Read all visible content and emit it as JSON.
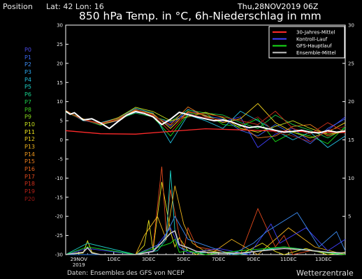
{
  "header": {
    "position_label": "Position",
    "latlon": "Lat: 42  Lon: 16",
    "date": "Thu,28NOV2019 06Z",
    "title": "850 hPa Temp. in °C, 6h-Niederschlag in mm"
  },
  "footer": {
    "source": "Daten: Ensembles des GFS von NCEP",
    "brand": "Wetterzentrale"
  },
  "members": [
    {
      "label": "P0",
      "color": "#4a4ae8"
    },
    {
      "label": "P1",
      "color": "#3a68f0"
    },
    {
      "label": "P2",
      "color": "#3c8cf2"
    },
    {
      "label": "P3",
      "color": "#2ca8f0"
    },
    {
      "label": "P4",
      "color": "#22c0e0"
    },
    {
      "label": "P5",
      "color": "#1ccfc4"
    },
    {
      "label": "P6",
      "color": "#18cf8c"
    },
    {
      "label": "P7",
      "color": "#1ccf4c"
    },
    {
      "label": "P8",
      "color": "#40d020"
    },
    {
      "label": "P9",
      "color": "#88d81c"
    },
    {
      "label": "P10",
      "color": "#c8e21c"
    },
    {
      "label": "P11",
      "color": "#f0e81c"
    },
    {
      "label": "P12",
      "color": "#f0d01c"
    },
    {
      "label": "P13",
      "color": "#f0b41c"
    },
    {
      "label": "P14",
      "color": "#f0981c"
    },
    {
      "label": "P15",
      "color": "#ec7c1c"
    },
    {
      "label": "P16",
      "color": "#e8641c"
    },
    {
      "label": "P17",
      "color": "#e0481c"
    },
    {
      "label": "P18",
      "color": "#d0301c"
    },
    {
      "label": "P19",
      "color": "#b82018"
    },
    {
      "label": "P20",
      "color": "#9c1814"
    }
  ],
  "chart_data": {
    "type": "line",
    "x_unit": "hours from 2019-11-28 06Z",
    "xlim": [
      0,
      384
    ],
    "ylim_left": [
      -30,
      30
    ],
    "ylim_right": [
      0,
      30
    ],
    "left_ticks": [
      "30",
      "25",
      "20",
      "15",
      "10",
      "5",
      "0",
      "-5",
      "-10",
      "-15",
      "-20",
      "-25",
      "-30"
    ],
    "right_ticks": [
      "30",
      "25",
      "20",
      "15",
      "10",
      "5"
    ],
    "x_ticks": [
      {
        "label": "29NOV",
        "sub": "2019",
        "h": 18
      },
      {
        "label": "1DEC",
        "sub": "",
        "h": 66
      },
      {
        "label": "3DEC",
        "sub": "",
        "h": 114
      },
      {
        "label": "5DEC",
        "sub": "",
        "h": 162
      },
      {
        "label": "7DEC",
        "sub": "",
        "h": 210
      },
      {
        "label": "9DEC",
        "sub": "",
        "h": 258
      },
      {
        "label": "11DEC",
        "sub": "",
        "h": 306
      },
      {
        "label": "13DEC",
        "sub": "",
        "h": 354
      }
    ],
    "legend": [
      {
        "name": "30-Jahres-Mittel",
        "color": "#ff2a2a"
      },
      {
        "name": "Kontroll-Lauf",
        "color": "#4040ff"
      },
      {
        "name": "GFS-Hauptlauf",
        "color": "#18e018"
      },
      {
        "name": "Ensemble-Mittel",
        "color": "#c8c8c8"
      }
    ],
    "legend_position": "top-right",
    "climate_mean": {
      "x": [
        0,
        48,
        96,
        144,
        192,
        240,
        288,
        336,
        384
      ],
      "y": [
        2.4,
        1.6,
        1.5,
        2.2,
        2.9,
        2.6,
        2.3,
        2.1,
        1.9
      ]
    },
    "ensemble_mean": {
      "x": [
        0,
        6,
        12,
        24,
        36,
        48,
        60,
        72,
        84,
        96,
        108,
        120,
        132,
        144,
        156,
        168,
        180,
        192,
        204,
        216,
        228,
        240,
        252,
        264,
        276,
        288,
        300,
        312,
        324,
        336,
        348,
        360,
        372,
        384
      ],
      "y": [
        7.5,
        6.7,
        7.1,
        5.2,
        5.5,
        4.4,
        3.0,
        4.8,
        6.5,
        7.4,
        6.9,
        6.0,
        4.0,
        5.4,
        7.2,
        6.6,
        6.0,
        5.5,
        5.0,
        5.2,
        4.7,
        3.8,
        3.2,
        3.5,
        3.0,
        2.5,
        2.0,
        2.2,
        2.5,
        2.0,
        1.8,
        2.4,
        2.0,
        2.3
      ]
    },
    "temperature_series": [
      {
        "name": "Kontroll-Lauf",
        "color": "#4040ff",
        "x": [
          0,
          24,
          48,
          72,
          96,
          120,
          144,
          168,
          192,
          216,
          240,
          264,
          288,
          312,
          336,
          360,
          384
        ],
        "y": [
          7.4,
          5.1,
          4.0,
          5.0,
          7.6,
          6.2,
          4.5,
          7.0,
          5.5,
          4.8,
          6.0,
          -2.0,
          1.5,
          3.0,
          -0.5,
          2.5,
          6.0
        ]
      },
      {
        "name": "GFS-Hauptlauf",
        "color": "#18e018",
        "x": [
          0,
          24,
          48,
          72,
          96,
          120,
          144,
          168,
          192,
          216,
          240,
          264,
          288,
          312,
          336,
          360,
          384
        ],
        "y": [
          7.6,
          5.3,
          4.3,
          5.6,
          7.8,
          5.9,
          1.0,
          6.8,
          7.0,
          4.0,
          3.5,
          5.5,
          -0.5,
          2.0,
          1.0,
          -1.0,
          3.5
        ]
      },
      {
        "name": "P1",
        "color": "#3a68f0",
        "x": [
          0,
          24,
          48,
          72,
          96,
          120,
          144,
          168,
          192,
          216,
          240,
          264,
          288,
          312,
          336,
          360,
          384
        ],
        "y": [
          7.3,
          5.4,
          4.1,
          5.3,
          7.2,
          6.5,
          3.5,
          8.0,
          6.2,
          5.5,
          2.5,
          1.0,
          4.0,
          1.5,
          -1.0,
          3.0,
          5.5
        ]
      },
      {
        "name": "P4",
        "color": "#22c0e0",
        "x": [
          0,
          24,
          48,
          72,
          96,
          120,
          144,
          168,
          192,
          216,
          240,
          264,
          288,
          312,
          336,
          360,
          384
        ],
        "y": [
          7.6,
          5.0,
          4.5,
          5.7,
          8.2,
          7.0,
          -0.8,
          6.5,
          5.0,
          3.0,
          7.5,
          5.0,
          2.5,
          0.0,
          2.0,
          -2.0,
          1.0
        ]
      },
      {
        "name": "P7",
        "color": "#1ccf4c",
        "x": [
          0,
          24,
          48,
          72,
          96,
          120,
          144,
          168,
          192,
          216,
          240,
          264,
          288,
          312,
          336,
          360,
          384
        ],
        "y": [
          7.2,
          5.3,
          3.8,
          5.4,
          7.0,
          6.0,
          4.8,
          7.8,
          7.0,
          6.5,
          4.5,
          3.0,
          6.5,
          4.0,
          2.5,
          0.5,
          3.0
        ]
      },
      {
        "name": "P10",
        "color": "#c8e21c",
        "x": [
          0,
          24,
          48,
          72,
          96,
          120,
          144,
          168,
          192,
          216,
          240,
          264,
          288,
          312,
          336,
          360,
          384
        ],
        "y": [
          7.5,
          5.2,
          4.2,
          5.8,
          8.5,
          7.4,
          5.0,
          6.0,
          7.2,
          5.8,
          3.0,
          2.0,
          3.5,
          5.0,
          3.0,
          1.5,
          2.0
        ]
      },
      {
        "name": "P12",
        "color": "#f0d01c",
        "x": [
          0,
          24,
          48,
          72,
          96,
          120,
          144,
          168,
          192,
          216,
          240,
          264,
          288,
          312,
          336,
          360,
          384
        ],
        "y": [
          7.4,
          5.5,
          4.0,
          5.1,
          7.9,
          6.8,
          3.0,
          7.4,
          6.4,
          4.5,
          5.5,
          9.5,
          4.5,
          2.0,
          0.5,
          2.0,
          4.5
        ]
      },
      {
        "name": "P15",
        "color": "#ec7c1c",
        "x": [
          0,
          24,
          48,
          72,
          96,
          120,
          144,
          168,
          192,
          216,
          240,
          264,
          288,
          312,
          336,
          360,
          384
        ],
        "y": [
          7.7,
          5.1,
          4.4,
          5.5,
          7.5,
          6.3,
          4.0,
          8.6,
          6.0,
          5.0,
          4.0,
          0.5,
          1.0,
          3.5,
          4.0,
          1.0,
          2.5
        ]
      },
      {
        "name": "P18",
        "color": "#d0301c",
        "x": [
          0,
          24,
          48,
          72,
          96,
          120,
          144,
          168,
          192,
          216,
          240,
          264,
          288,
          312,
          336,
          360,
          384
        ],
        "y": [
          7.3,
          5.4,
          4.3,
          5.2,
          7.7,
          6.6,
          2.0,
          7.2,
          6.8,
          6.0,
          5.0,
          4.0,
          7.5,
          3.0,
          1.5,
          4.5,
          2.0
        ]
      },
      {
        "name": "P20",
        "color": "#9c1814",
        "x": [
          0,
          24,
          48,
          72,
          96,
          120,
          144,
          168,
          192,
          216,
          240,
          264,
          288,
          312,
          336,
          360,
          384
        ],
        "y": [
          7.5,
          5.2,
          4.1,
          5.6,
          8.0,
          6.4,
          3.8,
          6.8,
          5.8,
          5.2,
          3.8,
          6.0,
          2.0,
          1.0,
          -0.5,
          2.5,
          3.5
        ]
      }
    ],
    "precipitation_series": [
      {
        "name": "P11",
        "color": "#f0e81c",
        "x": [
          0,
          24,
          30,
          36,
          48,
          96,
          108,
          114,
          120,
          132,
          144,
          150,
          156,
          168,
          180,
          192,
          216,
          240,
          270,
          288,
          300,
          330,
          360,
          384
        ],
        "y": [
          0,
          0.2,
          1.8,
          0.3,
          0,
          0,
          1.2,
          4.5,
          0.6,
          9.5,
          3.0,
          1.0,
          2.2,
          0.5,
          0,
          0.6,
          0.2,
          0,
          1.5,
          0.4,
          0,
          0.8,
          0,
          0.3
        ]
      },
      {
        "name": "P17",
        "color": "#e0481c",
        "x": [
          0,
          36,
          96,
          120,
          132,
          138,
          144,
          156,
          162,
          168,
          180,
          210,
          240,
          264,
          288,
          300,
          312,
          336,
          384
        ],
        "y": [
          0,
          0,
          0,
          1.0,
          11.5,
          3.0,
          8.5,
          2.5,
          0.5,
          3.5,
          1.0,
          0.5,
          0,
          6.0,
          1.0,
          2.5,
          0,
          0.5,
          0
        ]
      },
      {
        "name": "P5",
        "color": "#1ccfc4",
        "x": [
          0,
          30,
          96,
          126,
          138,
          144,
          150,
          156,
          168,
          180,
          204,
          240,
          264,
          300,
          384
        ],
        "y": [
          0,
          1.5,
          0,
          0.5,
          2.0,
          11.0,
          3.0,
          1.0,
          0.5,
          0.2,
          0.3,
          0,
          0.5,
          1.0,
          0
        ]
      },
      {
        "name": "P13",
        "color": "#f0b41c",
        "x": [
          0,
          96,
          108,
          126,
          138,
          150,
          162,
          174,
          198,
          228,
          264,
          306,
          342,
          384
        ],
        "y": [
          0,
          0,
          2.5,
          5.0,
          2.0,
          9.0,
          4.0,
          1.5,
          0,
          2.0,
          0,
          3.5,
          1.0,
          0
        ]
      },
      {
        "name": "Kontroll-Lauf",
        "color": "#4040ff",
        "x": [
          0,
          30,
          96,
          120,
          144,
          156,
          168,
          210,
          252,
          282,
          294,
          330,
          360,
          384
        ],
        "y": [
          0,
          0.8,
          0,
          0.5,
          3.5,
          1.0,
          0.2,
          0.8,
          0,
          4.0,
          1.5,
          3.5,
          0.5,
          2.0
        ]
      },
      {
        "name": "P2",
        "color": "#3c8cf2",
        "x": [
          0,
          96,
          132,
          150,
          168,
          228,
          258,
          276,
          318,
          348,
          372,
          384
        ],
        "y": [
          0,
          0,
          1.5,
          5.0,
          2.0,
          0,
          1.5,
          3.0,
          5.5,
          1.0,
          3.0,
          0.5
        ]
      },
      {
        "name": "GFS-Hauptlauf",
        "color": "#18e018",
        "x": [
          0,
          30,
          96,
          144,
          150,
          156,
          168,
          192,
          240,
          300,
          360,
          384
        ],
        "y": [
          0,
          1.0,
          0,
          1.5,
          2.0,
          0.3,
          0.5,
          0,
          0.5,
          1.0,
          0.2,
          0
        ]
      },
      {
        "name": "Ensemble-Mittel",
        "color": "#c8c8c8",
        "x": [
          0,
          24,
          30,
          36,
          48,
          96,
          120,
          132,
          144,
          150,
          156,
          168,
          180,
          210,
          240,
          270,
          300,
          330,
          360,
          384
        ],
        "y": [
          0,
          0.3,
          0.9,
          0.2,
          0,
          0,
          0.4,
          1.6,
          2.8,
          3.1,
          1.3,
          0.9,
          0.4,
          0.2,
          0.2,
          0.5,
          0.8,
          0.6,
          0.3,
          0.2
        ]
      }
    ]
  }
}
